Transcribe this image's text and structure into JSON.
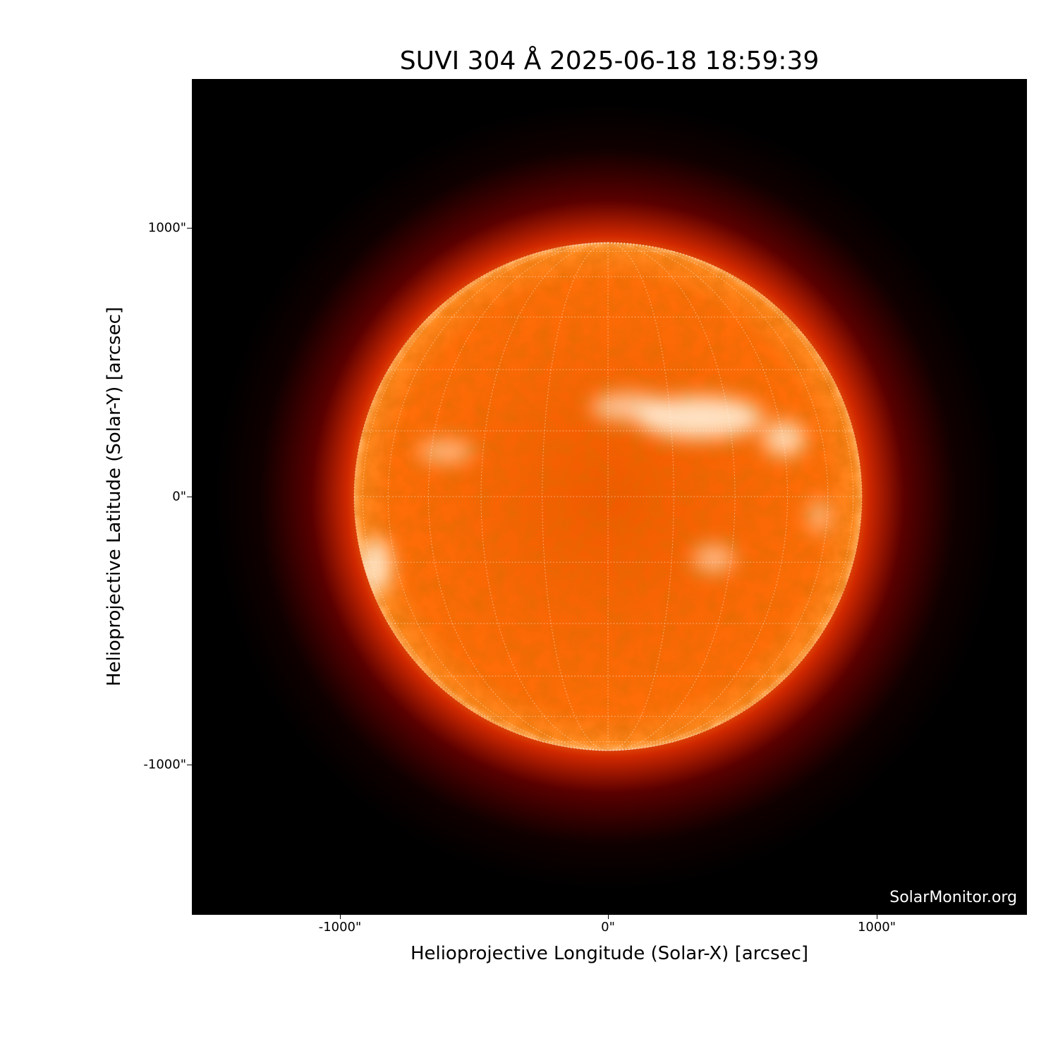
{
  "title": "SUVI 304 Å 2025-06-18 18:59:39",
  "watermark": "SolarMonitor.org",
  "plot": {
    "xlabel": "Helioprojective Longitude (Solar-X) [arcsec]",
    "ylabel": "Helioprojective Latitude (Solar-Y) [arcsec]",
    "xticks": [
      {
        "value": -1000,
        "label": "-1000\""
      },
      {
        "value": 0,
        "label": "0\""
      },
      {
        "value": 1000,
        "label": "1000\""
      }
    ],
    "yticks": [
      {
        "value": 1000,
        "label": "1000\""
      },
      {
        "value": 0,
        "label": "0\""
      },
      {
        "value": -1000,
        "label": "-1000\""
      }
    ],
    "xlim": [
      -1550,
      1560
    ],
    "ylim": [
      -1560,
      1550
    ],
    "solar_radius_arcsec": 945,
    "grid_spacing_deg": 15,
    "colors": {
      "disk": "#ff6a00",
      "limb": "#c81e00",
      "bright": "#fff4e0",
      "grid": "#ffffff"
    }
  }
}
